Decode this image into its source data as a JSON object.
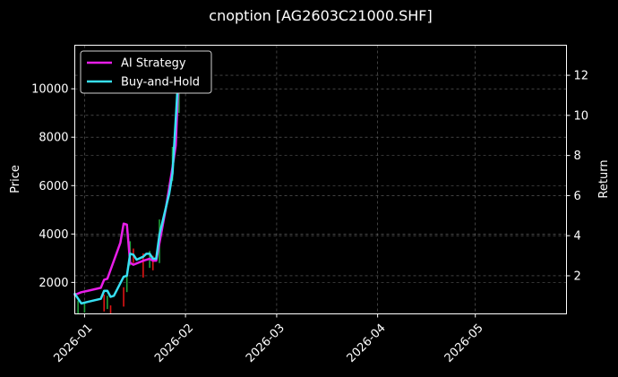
{
  "chart_data": {
    "type": "line",
    "title": "cnoption [AG2603C21000.SHF]",
    "xlabel": "",
    "ylabel_left": "Price",
    "ylabel_right": "Return",
    "x_ticks": [
      "2026-01",
      "2026-02",
      "2026-03",
      "2026-04",
      "2026-05"
    ],
    "x_range": [
      "2025-12-29",
      "2026-05-29"
    ],
    "y_left_ticks": [
      2000,
      4000,
      6000,
      8000,
      10000
    ],
    "y_left_range": [
      700,
      11800
    ],
    "y_right_ticks": [
      2,
      4,
      6,
      8,
      10,
      12
    ],
    "y_right_range": [
      0.1,
      13.5
    ],
    "grid": true,
    "legend_position": "top-left",
    "background": "#000000",
    "series": [
      {
        "name": "AI Strategy",
        "axis": "right",
        "color": "#e81ee8",
        "points": [
          [
            "2025-12-29",
            1.05
          ],
          [
            "2025-12-31",
            1.18
          ],
          [
            "2026-01-02",
            1.25
          ],
          [
            "2026-01-06",
            1.4
          ],
          [
            "2026-01-07",
            1.8
          ],
          [
            "2026-01-08",
            1.85
          ],
          [
            "2026-01-09",
            2.3
          ],
          [
            "2026-01-12",
            3.65
          ],
          [
            "2026-01-13",
            4.6
          ],
          [
            "2026-01-14",
            4.55
          ],
          [
            "2026-01-15",
            2.65
          ],
          [
            "2026-01-16",
            2.55
          ],
          [
            "2026-01-19",
            2.75
          ],
          [
            "2026-01-21",
            2.85
          ],
          [
            "2026-01-22",
            2.75
          ],
          [
            "2026-01-23",
            2.75
          ],
          [
            "2026-01-26",
            5.4
          ],
          [
            "2026-01-28",
            7.4
          ],
          [
            "2026-01-29",
            8.5
          ],
          [
            "2026-01-30",
            12.5
          ]
        ]
      },
      {
        "name": "Buy-and-Hold",
        "axis": "right",
        "color": "#38e0f2",
        "points": [
          [
            "2025-12-29",
            1.1
          ],
          [
            "2025-12-31",
            0.62
          ],
          [
            "2026-01-02",
            0.7
          ],
          [
            "2026-01-06",
            0.85
          ],
          [
            "2026-01-07",
            1.25
          ],
          [
            "2026-01-08",
            1.25
          ],
          [
            "2026-01-09",
            0.95
          ],
          [
            "2026-01-10",
            1.0
          ],
          [
            "2026-01-13",
            1.95
          ],
          [
            "2026-01-14",
            2.0
          ],
          [
            "2026-01-15",
            3.1
          ],
          [
            "2026-01-16",
            3.05
          ],
          [
            "2026-01-17",
            2.8
          ],
          [
            "2026-01-19",
            2.95
          ],
          [
            "2026-01-20",
            3.1
          ],
          [
            "2026-01-21",
            3.1
          ],
          [
            "2026-01-22",
            2.85
          ],
          [
            "2026-01-23",
            2.85
          ],
          [
            "2026-01-24",
            4.05
          ],
          [
            "2026-01-27",
            6.1
          ],
          [
            "2026-01-28",
            7.1
          ],
          [
            "2026-01-29",
            9.8
          ],
          [
            "2026-01-30",
            12.6
          ]
        ]
      }
    ],
    "candles": {
      "axis": "left",
      "up_color": "#1fa33a",
      "down_color": "#e01414",
      "items": [
        {
          "date": "2025-12-30",
          "low": 700,
          "high": 1250,
          "dir": "up"
        },
        {
          "date": "2026-01-01",
          "low": 750,
          "high": 1150,
          "dir": "up"
        },
        {
          "date": "2026-01-07",
          "low": 800,
          "high": 1500,
          "dir": "down"
        },
        {
          "date": "2026-01-08",
          "low": 900,
          "high": 1450,
          "dir": "up"
        },
        {
          "date": "2026-01-09",
          "low": 700,
          "high": 1050,
          "dir": "down"
        },
        {
          "date": "2026-01-13",
          "low": 1000,
          "high": 1800,
          "dir": "down"
        },
        {
          "date": "2026-01-14",
          "low": 1600,
          "high": 2300,
          "dir": "up"
        },
        {
          "date": "2026-01-15",
          "low": 2700,
          "high": 3700,
          "dir": "up"
        },
        {
          "date": "2026-01-16",
          "low": 2800,
          "high": 3400,
          "dir": "down"
        },
        {
          "date": "2026-01-19",
          "low": 2200,
          "high": 3200,
          "dir": "down"
        },
        {
          "date": "2026-01-21",
          "low": 2600,
          "high": 3300,
          "dir": "up"
        },
        {
          "date": "2026-01-22",
          "low": 2500,
          "high": 3100,
          "dir": "down"
        },
        {
          "date": "2026-01-24",
          "low": 2800,
          "high": 4600,
          "dir": "up"
        },
        {
          "date": "2026-01-28",
          "low": 6200,
          "high": 7600,
          "dir": "up"
        },
        {
          "date": "2026-01-30",
          "low": 9000,
          "high": 11200,
          "dir": "up"
        }
      ]
    }
  }
}
